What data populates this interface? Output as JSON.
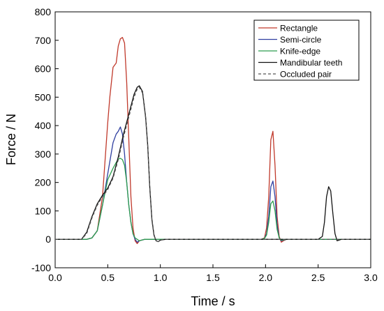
{
  "chart_data": {
    "type": "line",
    "title": "",
    "xlabel": "Time / s",
    "ylabel": "Force / N",
    "xlim": [
      0.0,
      3.0
    ],
    "ylim": [
      -100,
      800
    ],
    "xticks": [
      "0.0",
      "0.5",
      "1.0",
      "1.5",
      "2.0",
      "2.5",
      "3.0"
    ],
    "yticks": [
      "-100",
      "0",
      "100",
      "200",
      "300",
      "400",
      "500",
      "600",
      "700",
      "800"
    ],
    "grid": false,
    "legend_position": "top-right",
    "series": [
      {
        "name": "Rectangle",
        "color": "#c0392b",
        "dash": "",
        "x": [
          0.0,
          0.3,
          0.35,
          0.4,
          0.45,
          0.5,
          0.52,
          0.55,
          0.58,
          0.6,
          0.62,
          0.64,
          0.66,
          0.68,
          0.7,
          0.72,
          0.74,
          0.76,
          0.78,
          0.8,
          0.85,
          1.9,
          1.96,
          1.99,
          2.01,
          2.03,
          2.05,
          2.07,
          2.09,
          2.11,
          2.13,
          2.15,
          2.17,
          2.2,
          3.0
        ],
        "y": [
          0,
          0,
          5,
          30,
          150,
          410,
          500,
          605,
          620,
          680,
          705,
          710,
          690,
          550,
          350,
          150,
          40,
          -5,
          -15,
          -5,
          0,
          0,
          0,
          5,
          40,
          150,
          350,
          380,
          260,
          80,
          10,
          -10,
          -5,
          0,
          0
        ]
      },
      {
        "name": "Semi-circle",
        "color": "#2f3fa0",
        "dash": "",
        "x": [
          0.0,
          0.3,
          0.35,
          0.4,
          0.45,
          0.5,
          0.55,
          0.58,
          0.6,
          0.62,
          0.64,
          0.66,
          0.68,
          0.7,
          0.72,
          0.74,
          0.76,
          0.78,
          0.8,
          0.85,
          1.9,
          1.96,
          1.99,
          2.01,
          2.03,
          2.05,
          2.07,
          2.09,
          2.11,
          2.13,
          2.15,
          2.17,
          2.2,
          3.0
        ],
        "y": [
          0,
          0,
          5,
          30,
          120,
          230,
          340,
          370,
          380,
          395,
          370,
          300,
          200,
          120,
          60,
          20,
          0,
          -10,
          -5,
          0,
          0,
          0,
          3,
          20,
          80,
          185,
          205,
          150,
          50,
          5,
          -5,
          -3,
          0,
          0
        ]
      },
      {
        "name": "Knife-edge",
        "color": "#2e9e4f",
        "dash": "",
        "x": [
          0.0,
          0.3,
          0.35,
          0.4,
          0.45,
          0.5,
          0.55,
          0.58,
          0.6,
          0.62,
          0.64,
          0.66,
          0.68,
          0.7,
          0.72,
          0.74,
          0.76,
          0.78,
          0.8,
          0.85,
          1.9,
          1.96,
          1.99,
          2.01,
          2.03,
          2.05,
          2.07,
          2.09,
          2.11,
          2.13,
          2.15,
          2.17,
          2.2,
          3.0
        ],
        "y": [
          0,
          0,
          5,
          30,
          120,
          210,
          250,
          270,
          282,
          285,
          280,
          260,
          200,
          120,
          60,
          20,
          5,
          0,
          -5,
          0,
          0,
          0,
          3,
          15,
          60,
          125,
          135,
          100,
          35,
          5,
          -3,
          -2,
          0,
          0
        ]
      },
      {
        "name": "Mandibular teeth",
        "color": "#111111",
        "dash": "",
        "x": [
          0.0,
          0.25,
          0.3,
          0.35,
          0.4,
          0.45,
          0.5,
          0.55,
          0.6,
          0.65,
          0.7,
          0.75,
          0.78,
          0.8,
          0.83,
          0.86,
          0.88,
          0.9,
          0.92,
          0.94,
          0.96,
          0.98,
          1.0,
          1.05,
          2.5,
          2.54,
          2.56,
          2.58,
          2.6,
          2.62,
          2.64,
          2.66,
          2.68,
          2.72,
          3.0
        ],
        "y": [
          0,
          0,
          25,
          80,
          125,
          155,
          180,
          220,
          290,
          370,
          440,
          510,
          535,
          540,
          520,
          430,
          330,
          180,
          70,
          15,
          -5,
          -8,
          -3,
          0,
          0,
          10,
          60,
          150,
          185,
          170,
          90,
          20,
          -5,
          0,
          0
        ]
      },
      {
        "name": "Occluded pair",
        "color": "#555555",
        "dash": "4,3",
        "x": [
          0.0,
          0.25,
          0.3,
          0.35,
          0.4,
          0.45,
          0.5,
          0.55,
          0.6,
          0.65,
          0.7,
          0.75,
          0.78,
          0.8,
          0.83,
          0.86,
          0.88,
          0.9,
          0.92,
          0.94,
          0.96,
          0.98,
          1.0,
          1.05,
          3.0
        ],
        "y": [
          0,
          0,
          20,
          75,
          120,
          150,
          175,
          215,
          280,
          360,
          430,
          500,
          528,
          535,
          515,
          425,
          325,
          175,
          65,
          12,
          -5,
          -8,
          -3,
          0,
          0
        ]
      }
    ]
  }
}
